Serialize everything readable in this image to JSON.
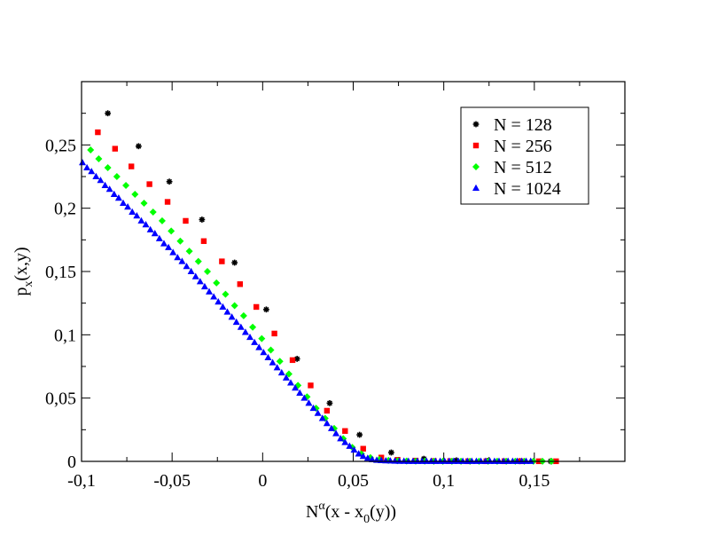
{
  "chart_data": {
    "type": "scatter",
    "xlabel": {
      "base": "N",
      "sup": "α",
      "rest_a": "(x - x",
      "sub": "0",
      "rest_b": "(y))"
    },
    "ylabel": {
      "base": "p",
      "sub": "x",
      "rest": "(x,y)"
    },
    "xlim": [
      -0.1,
      0.2
    ],
    "ylim": [
      0,
      0.3
    ],
    "x_ticks": [
      {
        "value": -0.1,
        "label": "-0,1"
      },
      {
        "value": -0.05,
        "label": "-0,05"
      },
      {
        "value": 0,
        "label": "0"
      },
      {
        "value": 0.05,
        "label": "0,05"
      },
      {
        "value": 0.1,
        "label": "0,1"
      },
      {
        "value": 0.15,
        "label": "0,15"
      }
    ],
    "y_ticks": [
      {
        "value": 0,
        "label": "0"
      },
      {
        "value": 0.05,
        "label": "0,05"
      },
      {
        "value": 0.1,
        "label": "0,1"
      },
      {
        "value": 0.15,
        "label": "0,15"
      },
      {
        "value": 0.2,
        "label": "0,2"
      },
      {
        "value": 0.25,
        "label": "0,25"
      }
    ],
    "legend_position": "top-right",
    "series": [
      {
        "name": "N = 128",
        "color": "#000000",
        "marker": "star",
        "points": [
          [
            -0.0855,
            0.275
          ],
          [
            -0.0685,
            0.249
          ],
          [
            -0.0515,
            0.221
          ],
          [
            -0.0335,
            0.191
          ],
          [
            -0.0155,
            0.157
          ],
          [
            0.002,
            0.12
          ],
          [
            0.019,
            0.081
          ],
          [
            0.037,
            0.046
          ],
          [
            0.0535,
            0.021
          ],
          [
            0.071,
            0.007
          ],
          [
            0.089,
            0.002
          ],
          [
            0.107,
            0.0008
          ],
          [
            0.124,
            0.0004
          ],
          [
            0.142,
            0.0002
          ],
          [
            0.159,
            0.0001
          ]
        ]
      },
      {
        "name": "N = 256",
        "color": "#ff0000",
        "marker": "square",
        "points": [
          [
            -0.091,
            0.26
          ],
          [
            -0.0815,
            0.247
          ],
          [
            -0.0725,
            0.233
          ],
          [
            -0.0625,
            0.219
          ],
          [
            -0.0525,
            0.205
          ],
          [
            -0.0425,
            0.19
          ],
          [
            -0.0325,
            0.174
          ],
          [
            -0.0225,
            0.158
          ],
          [
            -0.0125,
            0.14
          ],
          [
            -0.0035,
            0.122
          ],
          [
            0.0065,
            0.101
          ],
          [
            0.0165,
            0.08
          ],
          [
            0.0265,
            0.06
          ],
          [
            0.0355,
            0.04
          ],
          [
            0.0455,
            0.024
          ],
          [
            0.0555,
            0.01
          ],
          [
            0.0655,
            0.003
          ],
          [
            0.0745,
            0.0012
          ],
          [
            0.0845,
            0.0006
          ],
          [
            0.0945,
            0.0003
          ],
          [
            0.1035,
            0.0002
          ],
          [
            0.1135,
            0.0001
          ],
          [
            0.1235,
            0.0001
          ],
          [
            0.1335,
            0.0001
          ],
          [
            0.1425,
            0.0001
          ],
          [
            0.1525,
            0.0001
          ],
          [
            0.162,
            0.0001
          ]
        ]
      },
      {
        "name": "N = 512",
        "color": "#00ff00",
        "marker": "diamond",
        "points": [
          [
            -0.095,
            0.246
          ],
          [
            -0.0905,
            0.239
          ],
          [
            -0.0855,
            0.232
          ],
          [
            -0.0805,
            0.225
          ],
          [
            -0.0755,
            0.218
          ],
          [
            -0.0705,
            0.211
          ],
          [
            -0.0655,
            0.204
          ],
          [
            -0.0605,
            0.197
          ],
          [
            -0.0555,
            0.19
          ],
          [
            -0.0505,
            0.182
          ],
          [
            -0.0455,
            0.174
          ],
          [
            -0.0405,
            0.166
          ],
          [
            -0.0355,
            0.158
          ],
          [
            -0.0305,
            0.15
          ],
          [
            -0.0255,
            0.141
          ],
          [
            -0.0205,
            0.132
          ],
          [
            -0.0155,
            0.123
          ],
          [
            -0.0105,
            0.115
          ],
          [
            -0.0055,
            0.106
          ],
          [
            -0.0005,
            0.097
          ],
          [
            0.0045,
            0.088
          ],
          [
            0.0095,
            0.079
          ],
          [
            0.0145,
            0.069
          ],
          [
            0.0195,
            0.06
          ],
          [
            0.0245,
            0.051
          ],
          [
            0.0295,
            0.042
          ],
          [
            0.0345,
            0.034
          ],
          [
            0.0395,
            0.026
          ],
          [
            0.0445,
            0.018
          ],
          [
            0.0495,
            0.011
          ],
          [
            0.0545,
            0.006
          ],
          [
            0.0595,
            0.003
          ],
          [
            0.0645,
            0.0015
          ],
          [
            0.0695,
            0.0008
          ],
          [
            0.0745,
            0.0005
          ],
          [
            0.0795,
            0.0003
          ],
          [
            0.0845,
            0.0002
          ],
          [
            0.0895,
            0.0002
          ],
          [
            0.0945,
            0.0001
          ],
          [
            0.0995,
            0.0001
          ],
          [
            0.1045,
            0.0001
          ],
          [
            0.1095,
            0.0001
          ],
          [
            0.1145,
            0.0001
          ],
          [
            0.1195,
            0.0001
          ],
          [
            0.1245,
            0.0001
          ],
          [
            0.1295,
            0.0001
          ],
          [
            0.1345,
            0.0001
          ],
          [
            0.1395,
            0.0001
          ],
          [
            0.1445,
            0.0001
          ],
          [
            0.1495,
            0.0001
          ],
          [
            0.1545,
            0.0001
          ],
          [
            0.1595,
            0.0001
          ]
        ]
      },
      {
        "name": "N = 1024",
        "color": "#0000ff",
        "marker": "triangle",
        "points": [
          [
            -0.0995,
            0.236
          ],
          [
            -0.097,
            0.232
          ],
          [
            -0.0945,
            0.229
          ],
          [
            -0.092,
            0.225
          ],
          [
            -0.0895,
            0.222
          ],
          [
            -0.087,
            0.218
          ],
          [
            -0.0845,
            0.215
          ],
          [
            -0.082,
            0.211
          ],
          [
            -0.0795,
            0.208
          ],
          [
            -0.077,
            0.204
          ],
          [
            -0.0745,
            0.201
          ],
          [
            -0.072,
            0.197
          ],
          [
            -0.0695,
            0.194
          ],
          [
            -0.067,
            0.19
          ],
          [
            -0.0645,
            0.187
          ],
          [
            -0.062,
            0.183
          ],
          [
            -0.0595,
            0.18
          ],
          [
            -0.057,
            0.176
          ],
          [
            -0.0545,
            0.172
          ],
          [
            -0.052,
            0.169
          ],
          [
            -0.0495,
            0.165
          ],
          [
            -0.047,
            0.161
          ],
          [
            -0.0445,
            0.158
          ],
          [
            -0.042,
            0.154
          ],
          [
            -0.0395,
            0.15
          ],
          [
            -0.037,
            0.146
          ],
          [
            -0.0345,
            0.142
          ],
          [
            -0.032,
            0.138
          ],
          [
            -0.0295,
            0.134
          ],
          [
            -0.027,
            0.13
          ],
          [
            -0.0245,
            0.126
          ],
          [
            -0.022,
            0.122
          ],
          [
            -0.0195,
            0.118
          ],
          [
            -0.017,
            0.114
          ],
          [
            -0.0145,
            0.11
          ],
          [
            -0.012,
            0.106
          ],
          [
            -0.0095,
            0.102
          ],
          [
            -0.007,
            0.098
          ],
          [
            -0.0045,
            0.094
          ],
          [
            -0.002,
            0.09
          ],
          [
            0.0005,
            0.086
          ],
          [
            0.003,
            0.082
          ],
          [
            0.0055,
            0.078
          ],
          [
            0.008,
            0.074
          ],
          [
            0.0105,
            0.07
          ],
          [
            0.013,
            0.066
          ],
          [
            0.0155,
            0.062
          ],
          [
            0.018,
            0.058
          ],
          [
            0.0205,
            0.054
          ],
          [
            0.023,
            0.05
          ],
          [
            0.0255,
            0.046
          ],
          [
            0.028,
            0.042
          ],
          [
            0.0305,
            0.038
          ],
          [
            0.033,
            0.034
          ],
          [
            0.0355,
            0.03
          ],
          [
            0.038,
            0.026
          ],
          [
            0.0405,
            0.022
          ],
          [
            0.043,
            0.018
          ],
          [
            0.0455,
            0.015
          ],
          [
            0.048,
            0.012
          ],
          [
            0.0505,
            0.009
          ],
          [
            0.053,
            0.006
          ],
          [
            0.0555,
            0.004
          ],
          [
            0.058,
            0.0025
          ],
          [
            0.0605,
            0.0015
          ],
          [
            0.063,
            0.001
          ],
          [
            0.0655,
            0.0007
          ],
          [
            0.068,
            0.0005
          ],
          [
            0.0705,
            0.0004
          ],
          [
            0.073,
            0.0003
          ],
          [
            0.0755,
            0.0002
          ],
          [
            0.078,
            0.0002
          ],
          [
            0.0805,
            0.0001
          ],
          [
            0.083,
            0.0001
          ],
          [
            0.0855,
            0.0001
          ],
          [
            0.088,
            0.0001
          ],
          [
            0.0905,
            0.0001
          ],
          [
            0.093,
            0.0001
          ],
          [
            0.0955,
            0.0001
          ],
          [
            0.098,
            0.0001
          ],
          [
            0.1005,
            0.0001
          ],
          [
            0.103,
            0.0001
          ],
          [
            0.1055,
            0.0001
          ],
          [
            0.108,
            0.0001
          ],
          [
            0.1105,
            0.0001
          ],
          [
            0.113,
            0.0001
          ],
          [
            0.1155,
            0.0001
          ],
          [
            0.118,
            0.0001
          ],
          [
            0.1205,
            0.0001
          ],
          [
            0.123,
            0.0001
          ],
          [
            0.1255,
            0.0001
          ],
          [
            0.128,
            0.0001
          ],
          [
            0.1305,
            0.0001
          ],
          [
            0.133,
            0.0001
          ],
          [
            0.1355,
            0.0001
          ],
          [
            0.138,
            0.0001
          ],
          [
            0.1405,
            0.0001
          ],
          [
            0.143,
            0.0001
          ],
          [
            0.1455,
            0.0001
          ],
          [
            0.148,
            0.0001
          ]
        ]
      }
    ]
  }
}
